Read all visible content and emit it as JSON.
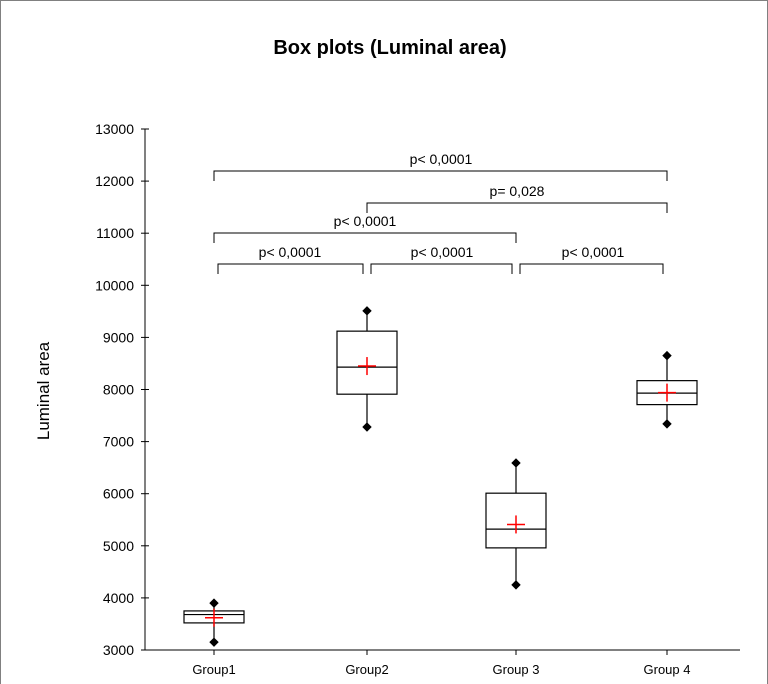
{
  "chart_data": {
    "type": "box",
    "title": "Box plots (Luminal area)",
    "xlabel": "",
    "ylabel": "Luminal area",
    "ylim": [
      3000,
      13000
    ],
    "yticks": [
      3000,
      4000,
      5000,
      6000,
      7000,
      8000,
      9000,
      10000,
      11000,
      12000,
      13000
    ],
    "categories": [
      "Group1",
      "Group2",
      "Group 3",
      "Group 4"
    ],
    "boxes": [
      {
        "min": 3150,
        "q1": 3520,
        "median": 3680,
        "q3": 3750,
        "max": 3900,
        "mean": 3620
      },
      {
        "min": 7280,
        "q1": 7910,
        "median": 8430,
        "q3": 9120,
        "max": 9510,
        "mean": 8450
      },
      {
        "min": 4250,
        "q1": 4960,
        "median": 5320,
        "q3": 6010,
        "max": 6590,
        "mean": 5410
      },
      {
        "min": 7340,
        "q1": 7710,
        "median": 7930,
        "q3": 8170,
        "max": 8650,
        "mean": 7940
      }
    ],
    "comparisons": [
      {
        "from": 0,
        "to": 1,
        "label": "p< 0,0001"
      },
      {
        "from": 1,
        "to": 2,
        "label": "p< 0,0001"
      },
      {
        "from": 2,
        "to": 3,
        "label": "p< 0,0001"
      },
      {
        "from": 0,
        "to": 2,
        "label": "p< 0,0001"
      },
      {
        "from": 1,
        "to": 3,
        "label": "p= 0,028"
      },
      {
        "from": 0,
        "to": 3,
        "label": "p< 0,0001"
      }
    ],
    "legend": "none",
    "grid": false,
    "colors": {
      "box": "#000000",
      "mean_marker": "#ff0000",
      "whisker_end": "#000000"
    }
  }
}
